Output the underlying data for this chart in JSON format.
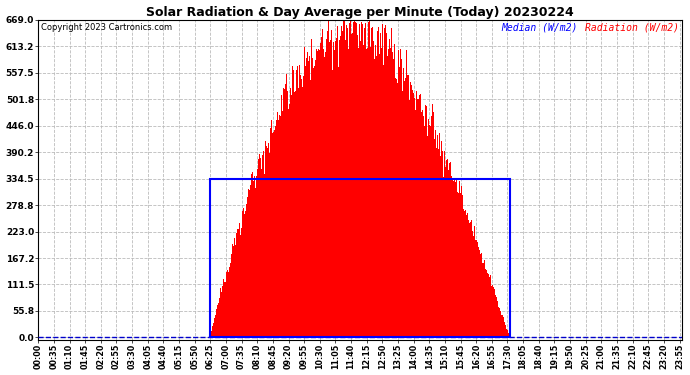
{
  "title": "Solar Radiation & Day Average per Minute (Today) 20230224",
  "copyright": "Copyright 2023 Cartronics.com",
  "legend_median": "Median (W/m2)",
  "legend_radiation": "Radiation (W/m2)",
  "yticks": [
    0.0,
    55.8,
    111.5,
    167.2,
    223.0,
    278.8,
    334.5,
    390.2,
    446.0,
    501.8,
    557.5,
    613.2,
    669.0
  ],
  "ymax": 669.0,
  "ymin": 0.0,
  "total_minutes": 1440,
  "sunrise_minute": 385,
  "sunset_minute": 1055,
  "peak_minute": 770,
  "peak_value": 648,
  "median_value": 334.5,
  "bar_color": "#ff0000",
  "median_box_color": "#0000ff",
  "background_color": "#ffffff",
  "grid_color": "#bbbbbb",
  "title_color": "#000000",
  "copyright_color": "#000000",
  "dashed_line_color": "#0000cc",
  "xtick_step": 35,
  "figwidth": 6.9,
  "figheight": 3.75,
  "dpi": 100
}
